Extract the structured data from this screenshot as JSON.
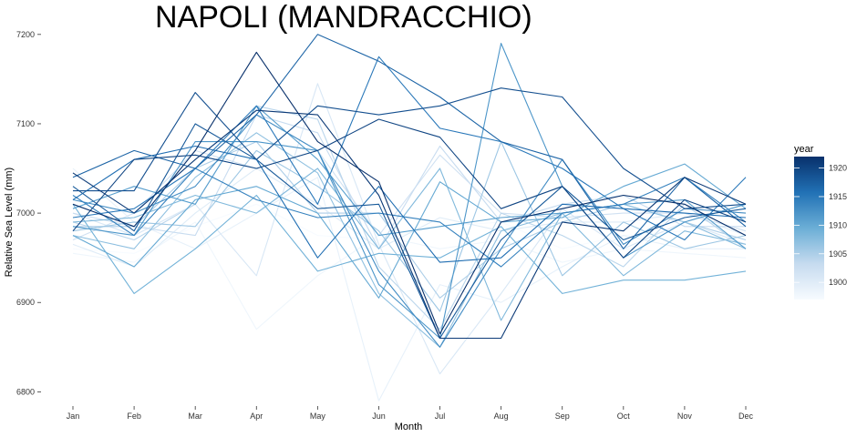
{
  "chart_data": {
    "type": "line",
    "title": "NAPOLI (MANDRACCHIO)",
    "xlabel": "Month",
    "ylabel": "Relative Sea Level (mm)",
    "categories": [
      "Jan",
      "Feb",
      "Mar",
      "Apr",
      "May",
      "Jun",
      "Jul",
      "Aug",
      "Sep",
      "Oct",
      "Nov",
      "Dec"
    ],
    "ylim": [
      6780,
      7210
    ],
    "yticks": [
      6800,
      6900,
      7000,
      7100,
      7200
    ],
    "grid": false,
    "legend": {
      "title": "year",
      "placement": "right",
      "ticks": [
        1900,
        1905,
        1910,
        1915,
        1920
      ],
      "range": [
        1897,
        1922
      ],
      "low_color": "#f7fbff",
      "high_color": "#08306b"
    },
    "series": [
      {
        "year": 1897,
        "values": [
          6960,
          6955,
          6985,
          7010,
          6975,
          6970,
          6985,
          6990,
          6960,
          6975,
          6980,
          6965
        ]
      },
      {
        "year": 1898,
        "values": [
          6955,
          6945,
          6990,
          6870,
          6930,
          6975,
          6960,
          6970,
          6945,
          6960,
          6955,
          6950
        ]
      },
      {
        "year": 1899,
        "values": [
          7050,
          6990,
          6960,
          7000,
          7040,
          6790,
          6920,
          6900,
          6940,
          6975,
          6960,
          6960
        ]
      },
      {
        "year": 1900,
        "values": [
          6965,
          6940,
          7000,
          7050,
          7010,
          6960,
          6995,
          6980,
          6990,
          6990,
          7000,
          6975
        ]
      },
      {
        "year": 1901,
        "values": [
          7000,
          6975,
          7010,
          6930,
          7145,
          6965,
          6820,
          6910,
          7005,
          6960,
          6990,
          6965
        ]
      },
      {
        "year": 1902,
        "values": [
          6970,
          7000,
          7070,
          7050,
          7070,
          6975,
          7065,
          7000,
          6995,
          7000,
          7000,
          6980
        ]
      },
      {
        "year": 1903,
        "values": [
          7000,
          6985,
          6975,
          7110,
          7090,
          6960,
          7075,
          6990,
          7010,
          7020,
          6985,
          6985
        ]
      },
      {
        "year": 1904,
        "values": [
          6990,
          6970,
          7010,
          7120,
          7105,
          6940,
          6870,
          7000,
          6975,
          6940,
          7010,
          6960
        ]
      },
      {
        "year": 1905,
        "values": [
          6985,
          6985,
          7050,
          7080,
          7000,
          7000,
          6905,
          6960,
          6990,
          7010,
          6990,
          6970
        ]
      },
      {
        "year": 1906,
        "values": [
          6980,
          6990,
          6985,
          7070,
          7030,
          6980,
          6890,
          7080,
          6930,
          6990,
          6960,
          6975
        ]
      },
      {
        "year": 1907,
        "values": [
          6975,
          6960,
          7040,
          7090,
          7045,
          6910,
          6850,
          6980,
          7000,
          7010,
          6990,
          6960
        ]
      },
      {
        "year": 1908,
        "values": [
          6990,
          6995,
          7020,
          7000,
          7050,
          6960,
          7050,
          6880,
          7000,
          6930,
          6980,
          6965
        ]
      },
      {
        "year": 1909,
        "values": [
          7010,
          6910,
          6960,
          7020,
          6935,
          6955,
          6950,
          6985,
          6910,
          6925,
          6925,
          6935
        ]
      },
      {
        "year": 1910,
        "values": [
          6975,
          6940,
          7015,
          7030,
          7000,
          6905,
          7035,
          6990,
          6995,
          7030,
          7055,
          7005
        ]
      },
      {
        "year": 1911,
        "values": [
          7005,
          7030,
          7010,
          7120,
          7060,
          6975,
          6985,
          6995,
          7000,
          7010,
          7015,
          6960
        ]
      },
      {
        "year": 1912,
        "values": [
          6985,
          6975,
          7080,
          7080,
          7070,
          6920,
          6860,
          7190,
          7030,
          6950,
          6990,
          7010
        ]
      },
      {
        "year": 1913,
        "values": [
          7015,
          7000,
          7030,
          7110,
          7070,
          6935,
          6850,
          6960,
          7060,
          6965,
          7005,
          7000
        ]
      },
      {
        "year": 1914,
        "values": [
          7020,
          6975,
          7050,
          7015,
          6995,
          7000,
          6990,
          6940,
          7000,
          7010,
          7040,
          6990
        ]
      },
      {
        "year": 1915,
        "values": [
          6995,
          7005,
          7050,
          7120,
          7010,
          7175,
          7095,
          7080,
          7050,
          7005,
          6970,
          7040
        ]
      },
      {
        "year": 1916,
        "values": [
          7015,
          7060,
          7075,
          7060,
          6950,
          7030,
          6945,
          6950,
          7010,
          7005,
          7000,
          6995
        ]
      },
      {
        "year": 1917,
        "values": [
          7040,
          7070,
          7050,
          7110,
          7200,
          7170,
          7130,
          7080,
          7060,
          6960,
          7040,
          6985
        ]
      },
      {
        "year": 1918,
        "values": [
          7030,
          6980,
          7100,
          7060,
          7005,
          7010,
          6860,
          6970,
          7030,
          6970,
          6995,
          7005
        ]
      },
      {
        "year": 1919,
        "values": [
          7025,
          7025,
          7135,
          7060,
          7120,
          7110,
          7120,
          7140,
          7130,
          7050,
          7005,
          7010
        ]
      },
      {
        "year": 1920,
        "values": [
          6980,
          7060,
          7065,
          7050,
          7070,
          7105,
          7085,
          7005,
          7030,
          6950,
          7015,
          6990
        ]
      },
      {
        "year": 1921,
        "values": [
          7045,
          7000,
          7060,
          7115,
          7110,
          7020,
          6860,
          6860,
          6990,
          6980,
          7040,
          7010
        ]
      },
      {
        "year": 1922,
        "values": [
          7010,
          6985,
          7070,
          7180,
          7080,
          7035,
          6865,
          6990,
          7005,
          7020,
          7010,
          6975
        ]
      }
    ]
  }
}
